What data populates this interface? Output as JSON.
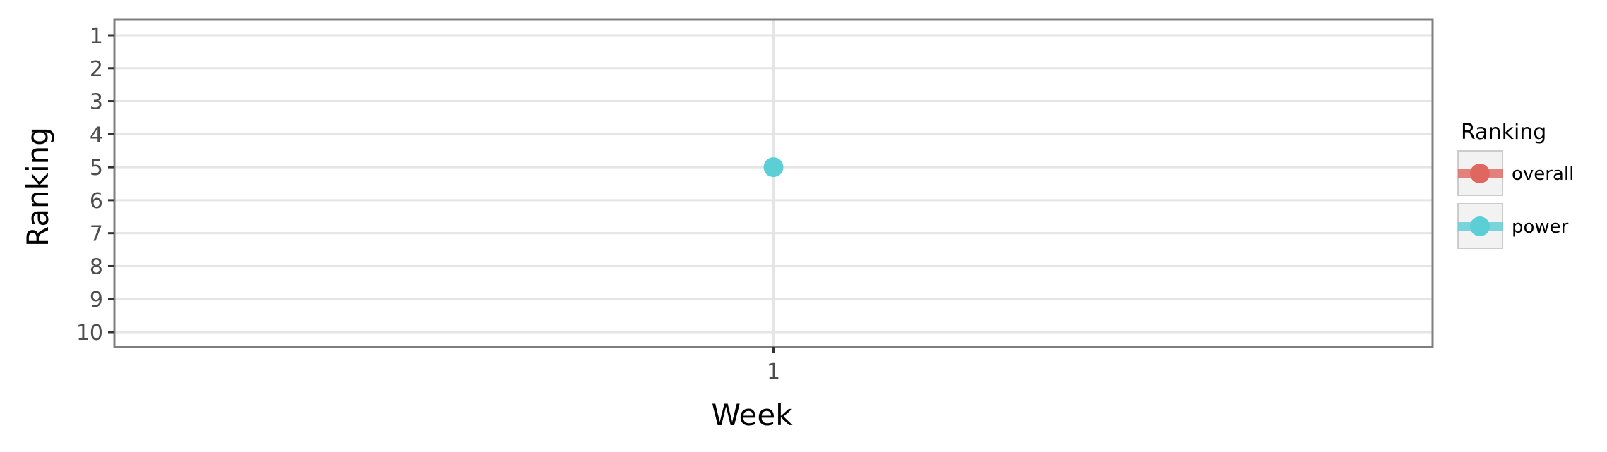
{
  "chart_data": {
    "type": "line",
    "xlabel": "Week",
    "ylabel": "Ranking",
    "x_ticks": [
      "1"
    ],
    "y_ticks": [
      "1",
      "2",
      "3",
      "4",
      "5",
      "6",
      "7",
      "8",
      "9",
      "10"
    ],
    "ylim": [
      1,
      10
    ],
    "y_reversed": true,
    "grid": true,
    "legend": {
      "title": "Ranking",
      "position": "right",
      "entries": [
        {
          "name": "overall",
          "color": "#e06760"
        },
        {
          "name": "power",
          "color": "#5ccfd6"
        }
      ]
    },
    "series": [
      {
        "name": "overall",
        "color": "#e06760",
        "points": []
      },
      {
        "name": "power",
        "color": "#5ccfd6",
        "points": [
          {
            "x": "1",
            "y": 5
          }
        ]
      }
    ]
  }
}
